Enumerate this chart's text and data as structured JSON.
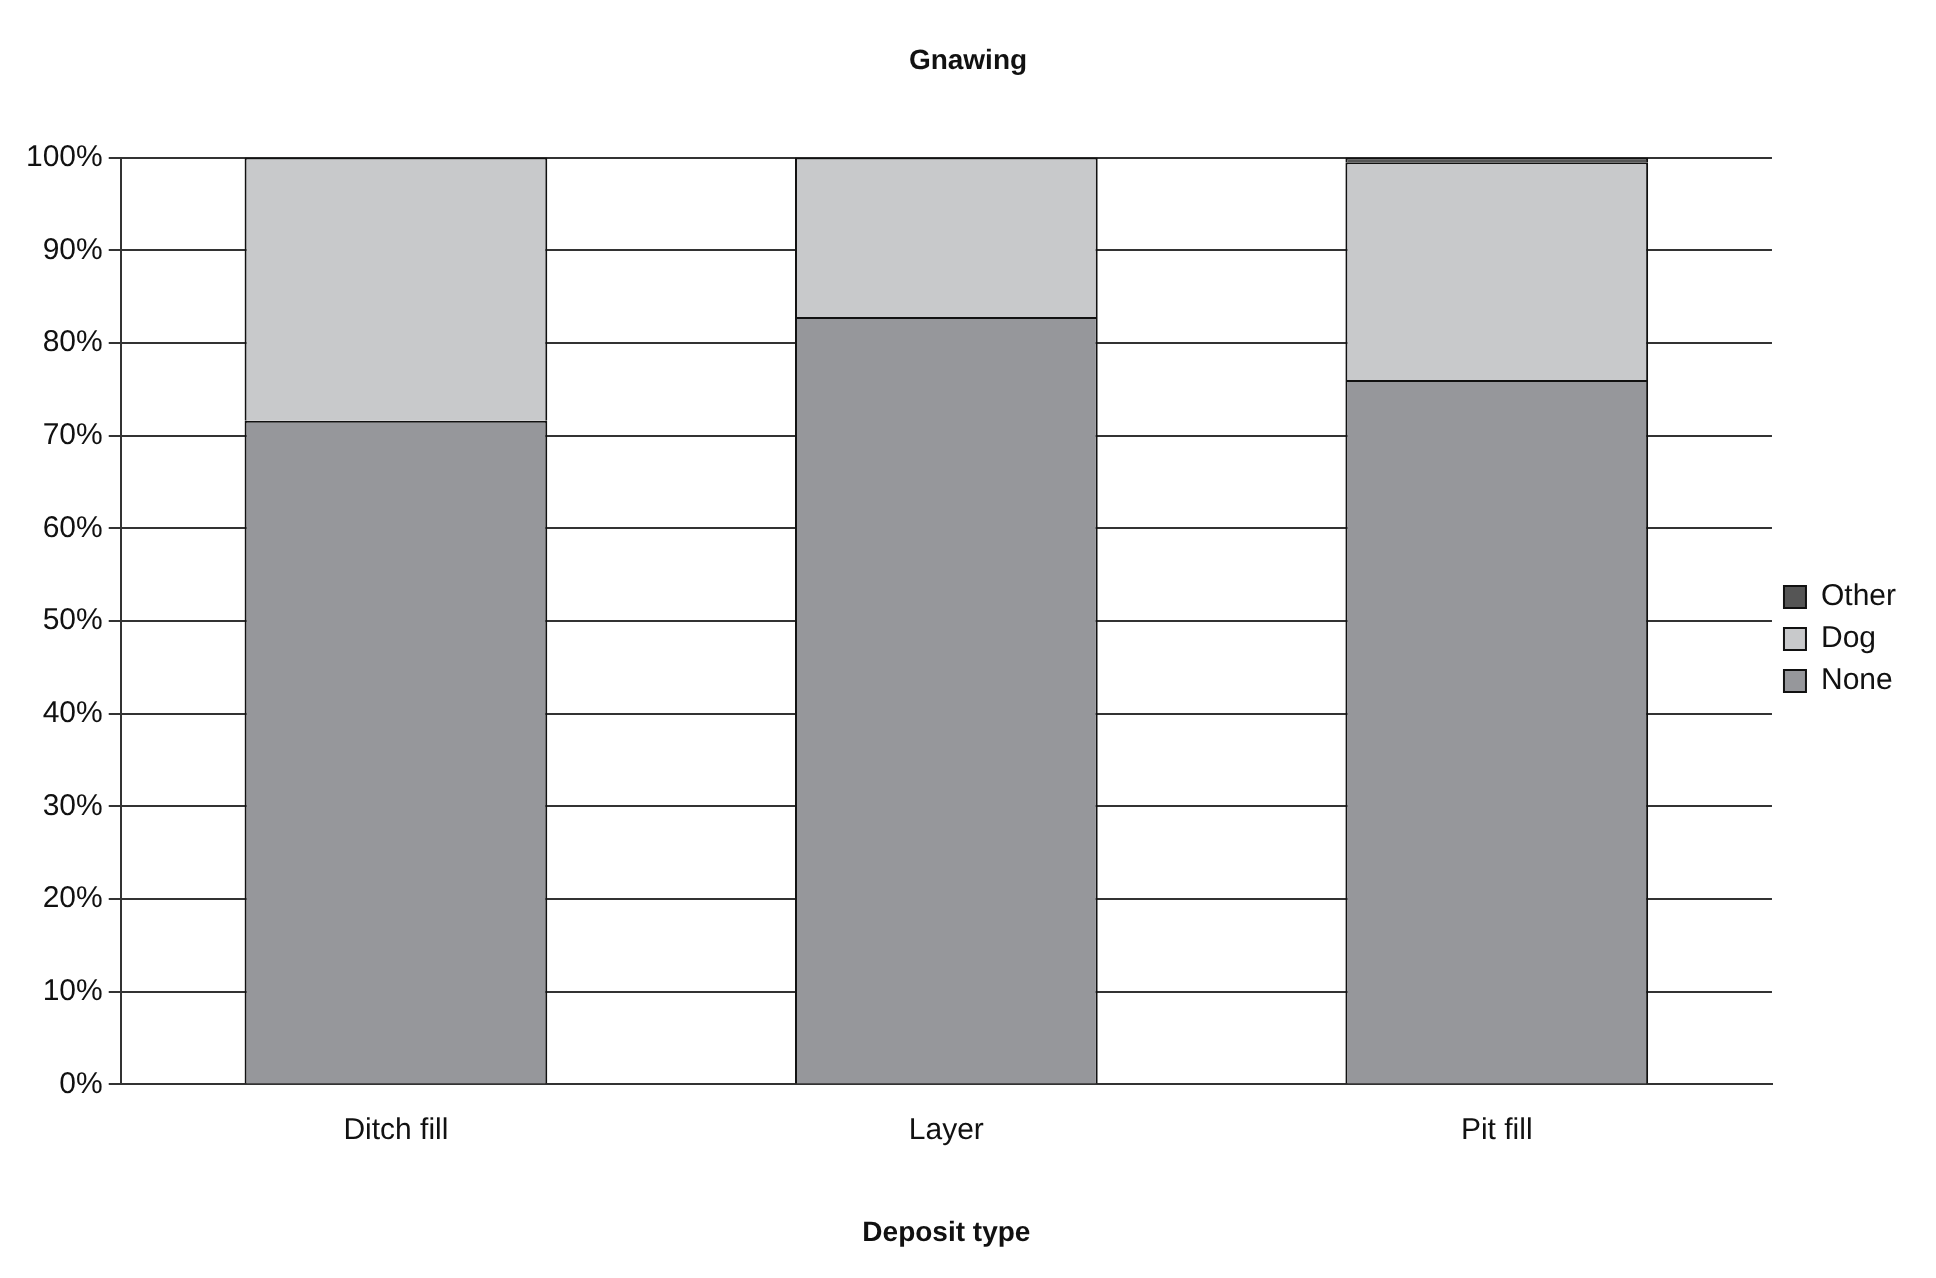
{
  "chart_data": {
    "type": "bar",
    "title": "Gnawing",
    "xlabel": "Deposit type",
    "categories": [
      "Ditch fill",
      "Layer",
      "Pit fill"
    ],
    "stacked": true,
    "series": [
      {
        "name": "None",
        "color": "#96979b",
        "values": [
          71.6,
          82.8,
          76
        ]
      },
      {
        "name": "Dog",
        "color": "#c8c9cb",
        "values": [
          28.4,
          17.2,
          23.5
        ]
      },
      {
        "name": "Other",
        "color": "#555555",
        "values": [
          0,
          0,
          0.5
        ]
      }
    ],
    "ylim": [
      0,
      100
    ],
    "yticks": [
      {
        "value": 0,
        "label": "0%"
      },
      {
        "value": 10,
        "label": "10%"
      },
      {
        "value": 20,
        "label": "20%"
      },
      {
        "value": 30,
        "label": "30%"
      },
      {
        "value": 40,
        "label": "40%"
      },
      {
        "value": 50,
        "label": "50%"
      },
      {
        "value": 60,
        "label": "60%"
      },
      {
        "value": 70,
        "label": "70%"
      },
      {
        "value": 80,
        "label": "80%"
      },
      {
        "value": 90,
        "label": "90%"
      },
      {
        "value": 100,
        "label": "100%"
      }
    ],
    "grid": "y",
    "legend": "right"
  }
}
